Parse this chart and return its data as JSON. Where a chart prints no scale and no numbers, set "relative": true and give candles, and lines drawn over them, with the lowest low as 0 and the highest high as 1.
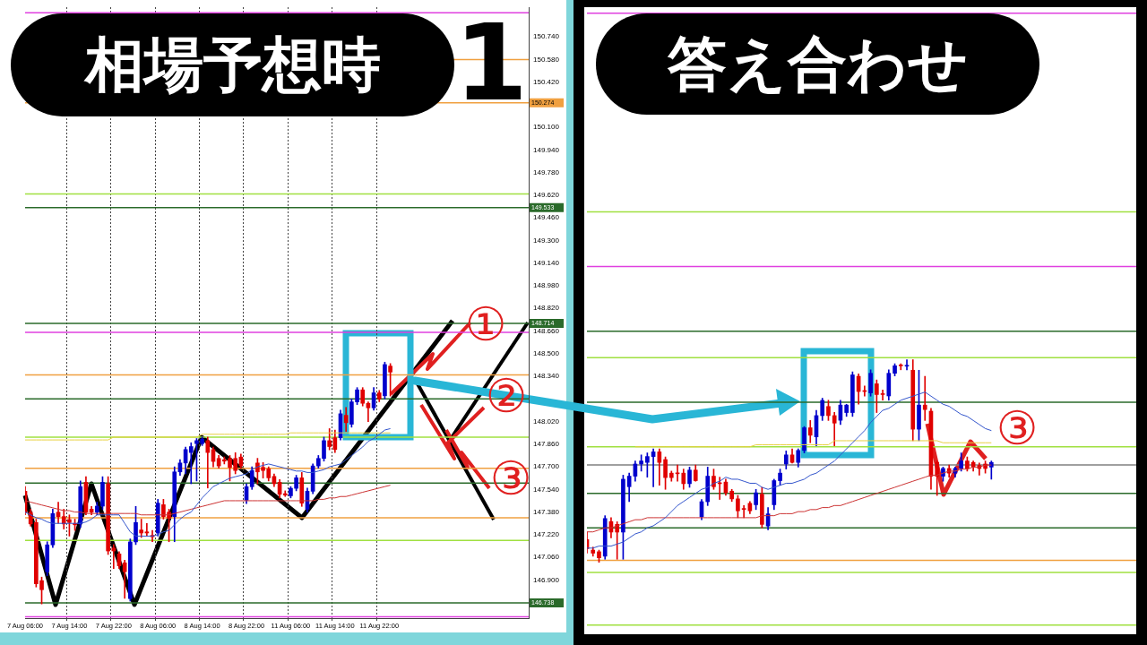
{
  "chart_data": [
    {
      "type": "candlestick",
      "title": "相場予想時",
      "categories": [
        "7 Aug 06:00",
        null,
        null,
        null,
        null,
        null,
        null,
        null,
        "7 Aug 14:00",
        null,
        null,
        null,
        null,
        null,
        null,
        null,
        "7 Aug 22:00",
        null,
        null,
        null,
        null,
        null,
        null,
        null,
        "8 Aug 06:00",
        null,
        null,
        null,
        null,
        null,
        null,
        null,
        "8 Aug 14:00",
        null,
        null,
        null,
        null,
        null,
        null,
        null,
        "8 Aug 22:00",
        null,
        null,
        null,
        null,
        null,
        null,
        null,
        "11 Aug 06:00",
        null,
        null,
        null,
        null,
        null,
        null,
        null,
        "11 Aug 14:00",
        null,
        null,
        null,
        null,
        null,
        null,
        null,
        "11 Aug 22:00",
        null,
        null,
        null,
        null,
        null,
        null,
        null,
        null,
        null,
        null,
        null,
        null,
        null,
        null,
        null,
        null,
        null,
        null,
        null,
        null,
        null,
        null,
        null,
        null,
        null,
        null,
        null
      ],
      "ohlc": [
        [
          147.527,
          147.56,
          147.36,
          147.379
        ],
        [
          147.379,
          147.4,
          147.28,
          147.296
        ],
        [
          147.306,
          147.33,
          146.85,
          146.873
        ],
        [
          146.895,
          146.92,
          146.73,
          146.831
        ],
        [
          146.958,
          147.17,
          146.93,
          147.148
        ],
        [
          147.148,
          147.4,
          147.13,
          147.369
        ],
        [
          147.379,
          147.45,
          147.3,
          147.348
        ],
        [
          147.348,
          147.4,
          147.26,
          147.296
        ],
        [
          147.327,
          147.36,
          147.21,
          147.306
        ],
        [
          147.3,
          147.33,
          147.25,
          147.29
        ],
        [
          147.296,
          147.6,
          147.27,
          147.559
        ],
        [
          147.59,
          147.63,
          147.36,
          147.379
        ],
        [
          147.4,
          147.42,
          147.36,
          147.379
        ],
        [
          147.379,
          147.45,
          147.36,
          147.422
        ],
        [
          147.422,
          147.63,
          147.4,
          147.59
        ],
        [
          147.58,
          147.63,
          147.08,
          147.105
        ],
        [
          147.126,
          147.15,
          146.98,
          147.105
        ],
        [
          147.084,
          147.1,
          146.98,
          147.0
        ],
        [
          147.021,
          147.04,
          146.77,
          146.958
        ],
        [
          146.768,
          147.19,
          146.75,
          147.169
        ],
        [
          147.169,
          147.42,
          147.15,
          147.306
        ],
        [
          147.253,
          147.33,
          147.2,
          147.232
        ],
        [
          147.24,
          147.3,
          147.21,
          147.232
        ],
        [
          147.215,
          147.25,
          147.17,
          147.205
        ],
        [
          147.232,
          147.47,
          147.21,
          147.443
        ],
        [
          147.432,
          147.47,
          147.33,
          147.348
        ],
        [
          147.379,
          147.4,
          147.17,
          147.338
        ],
        [
          147.348,
          147.7,
          147.17,
          147.664
        ],
        [
          147.664,
          147.75,
          147.64,
          147.727
        ],
        [
          147.727,
          147.84,
          147.65,
          147.822
        ],
        [
          147.801,
          147.87,
          147.58,
          147.843
        ],
        [
          147.864,
          147.9,
          147.6,
          147.885
        ],
        [
          147.864,
          147.91,
          147.85,
          147.896
        ],
        [
          147.885,
          147.91,
          147.55,
          147.801
        ],
        [
          147.822,
          147.84,
          147.7,
          147.738
        ],
        [
          147.759,
          147.78,
          147.69,
          147.706
        ],
        [
          147.75,
          147.77,
          147.72,
          147.74
        ],
        [
          147.759,
          147.78,
          147.6,
          147.696
        ],
        [
          147.759,
          147.8,
          147.65,
          147.674
        ],
        [
          147.769,
          147.79,
          147.69,
          147.706
        ],
        [
          147.464,
          147.58,
          147.44,
          147.559
        ],
        [
          147.559,
          147.7,
          147.54,
          147.674
        ],
        [
          147.727,
          147.76,
          147.58,
          147.664
        ],
        [
          147.696,
          147.73,
          147.62,
          147.674
        ],
        [
          147.685,
          147.7,
          147.6,
          147.622
        ],
        [
          147.632,
          147.65,
          147.56,
          147.58
        ],
        [
          147.59,
          147.61,
          147.48,
          147.506
        ],
        [
          147.51,
          147.53,
          147.49,
          147.5
        ],
        [
          147.495,
          147.56,
          147.48,
          147.548
        ],
        [
          147.548,
          147.64,
          147.53,
          147.622
        ],
        [
          147.622,
          147.66,
          147.42,
          147.443
        ],
        [
          147.4,
          147.55,
          147.38,
          147.527
        ],
        [
          147.527,
          147.72,
          147.51,
          147.706
        ],
        [
          147.706,
          147.78,
          147.69,
          147.759
        ],
        [
          147.759,
          147.91,
          147.74,
          147.885
        ],
        [
          147.885,
          147.97,
          147.82,
          147.843
        ],
        [
          147.906,
          147.96,
          147.8,
          147.822
        ],
        [
          147.906,
          148.1,
          147.89,
          148.075
        ],
        [
          148.064,
          148.12,
          147.95,
          148.012
        ],
        [
          148.001,
          148.18,
          147.98,
          148.159
        ],
        [
          148.159,
          148.26,
          148.14,
          148.244
        ],
        [
          148.244,
          148.26,
          148.13,
          148.149
        ],
        [
          148.149,
          148.16,
          148.02,
          148.117
        ],
        [
          148.117,
          148.26,
          148.1,
          148.223
        ],
        [
          148.223,
          148.24,
          148.16,
          148.18
        ],
        [
          148.202,
          148.44,
          148.18,
          148.423
        ],
        [
          148.412,
          148.43,
          148.2,
          148.37
        ],
        null,
        null,
        null,
        null,
        null,
        null,
        null,
        null,
        null,
        null,
        null,
        null,
        null,
        null,
        null,
        null,
        null,
        null,
        null,
        null,
        null,
        null,
        null,
        null,
        null
      ],
      "colors": [
        "#e00000",
        "#e00000",
        "#e00000",
        "#e00000",
        "#0000cc",
        "#0000cc",
        "#e00000",
        "#e00000",
        "#e00000",
        "#e00000",
        "#0000cc",
        "#e00000",
        "#e00000",
        "#0000cc",
        "#0000cc",
        "#e00000",
        "#e00000",
        "#e00000",
        "#e00000",
        "#0000cc",
        "#0000cc",
        "#e00000",
        "#e00000",
        "#e00000",
        "#0000cc",
        "#e00000",
        "#e00000",
        "#0000cc",
        "#0000cc",
        "#0000cc",
        "#0000cc",
        "#0000cc",
        "#0000cc",
        "#e00000",
        "#e00000",
        "#e00000",
        "#e00000",
        "#e00000",
        "#e00000",
        "#e00000",
        "#0000cc",
        "#0000cc",
        "#e00000",
        "#e00000",
        "#e00000",
        "#e00000",
        "#e00000",
        "#e00000",
        "#0000cc",
        "#0000cc",
        "#e00000",
        "#0000cc",
        "#0000cc",
        "#0000cc",
        "#0000cc",
        "#e00000",
        "#e00000",
        "#0000cc",
        "#e00000",
        "#0000cc",
        "#0000cc",
        "#e00000",
        "#e00000",
        "#0000cc",
        "#e00000",
        "#0000cc",
        "#e00000",
        null,
        null,
        null,
        null,
        null,
        null,
        null,
        null,
        null,
        null,
        null,
        null,
        null,
        null,
        null,
        null,
        null,
        null,
        null,
        null,
        null,
        null,
        null,
        null,
        null
      ],
      "series": [
        {
          "type": "line",
          "color": "#3355cc",
          "values": [
            147.38,
            147.36,
            147.34,
            147.33,
            147.31,
            147.3,
            147.3,
            147.3,
            147.3,
            147.3,
            147.3,
            147.31,
            147.33,
            147.36,
            147.36,
            147.36,
            147.36,
            147.36,
            147.3,
            147.24,
            147.21,
            147.21,
            147.21,
            147.21,
            147.22,
            147.24,
            147.25,
            147.29,
            147.33,
            147.36,
            147.38,
            147.43,
            147.48,
            147.52,
            147.56,
            147.58,
            147.6,
            147.62,
            147.63,
            147.64,
            147.65,
            147.68,
            147.7,
            147.71,
            147.72,
            147.71,
            147.7,
            147.69,
            147.68,
            147.67,
            147.67,
            147.66,
            147.66,
            147.67,
            147.68,
            147.7,
            147.71,
            147.72,
            147.75,
            147.78,
            147.81,
            147.84,
            147.88,
            147.9,
            147.93,
            147.96,
            147.97,
            null,
            null,
            null,
            null,
            null,
            null,
            null,
            null,
            null,
            null,
            null,
            null,
            null,
            null,
            null,
            null,
            null,
            null,
            null,
            null,
            null,
            null,
            null,
            null,
            null
          ]
        },
        {
          "type": "line",
          "color": "#cc3333",
          "values": [
            147.46,
            147.45,
            147.44,
            147.43,
            147.42,
            147.41,
            147.4,
            147.39,
            147.39,
            147.38,
            147.38,
            147.37,
            147.37,
            147.37,
            147.37,
            147.37,
            147.37,
            147.37,
            147.37,
            147.37,
            147.37,
            147.36,
            147.36,
            147.36,
            147.36,
            147.36,
            147.36,
            147.37,
            147.38,
            147.39,
            147.4,
            147.41,
            147.42,
            147.43,
            147.44,
            147.45,
            147.46,
            147.46,
            147.46,
            147.46,
            147.46,
            147.46,
            147.46,
            147.46,
            147.46,
            147.46,
            147.46,
            147.46,
            147.46,
            147.46,
            147.46,
            147.46,
            147.46,
            147.47,
            147.47,
            147.48,
            147.48,
            147.49,
            147.49,
            147.5,
            147.51,
            147.52,
            147.53,
            147.54,
            147.55,
            147.56,
            147.57,
            null,
            null,
            null,
            null,
            null,
            null,
            null,
            null,
            null,
            null,
            null,
            null,
            null,
            null,
            null,
            null,
            null,
            null,
            null,
            null,
            null,
            null,
            null,
            null,
            null
          ]
        },
        {
          "type": "line",
          "color": "#e8d040",
          "values": [
            147.89,
            147.89,
            147.89,
            147.89,
            147.89,
            147.89,
            147.89,
            147.89,
            147.89,
            147.89,
            147.89,
            147.89,
            147.89,
            147.89,
            147.89,
            147.89,
            147.91,
            147.91,
            147.91,
            147.91,
            147.91,
            147.91,
            147.91,
            147.91,
            147.91,
            147.91,
            147.91,
            147.91,
            147.91,
            147.91,
            147.91,
            147.91,
            147.93,
            147.93,
            147.93,
            147.93,
            147.93,
            147.93,
            147.93,
            147.93,
            147.93,
            147.93,
            147.93,
            147.93,
            147.93,
            147.93,
            147.93,
            147.93,
            147.94,
            147.94,
            147.94,
            147.94,
            147.94,
            147.94,
            147.94,
            147.94,
            147.94,
            147.94,
            147.94,
            147.94,
            147.94,
            147.94,
            147.94,
            147.94,
            147.94,
            147.94,
            147.94,
            null,
            null,
            null,
            null,
            null,
            null,
            null,
            null,
            null,
            null,
            null,
            null,
            null,
            null,
            null,
            null,
            null,
            null,
            null,
            null,
            null,
            null,
            null,
            null,
            null
          ]
        }
      ],
      "ylim": [
        146.63,
        150.95
      ],
      "yticks": [
        {
          "value": 150.74,
          "label": "150.740"
        },
        {
          "value": 150.58,
          "label": "150.580"
        },
        {
          "value": 150.42,
          "label": "150.420"
        },
        {
          "value": 150.1,
          "label": "150.100"
        },
        {
          "value": 149.94,
          "label": "149.940"
        },
        {
          "value": 149.78,
          "label": "149.780"
        },
        {
          "value": 149.62,
          "label": "149.620"
        },
        {
          "value": 149.46,
          "label": "149.460"
        },
        {
          "value": 149.3,
          "label": "149.300"
        },
        {
          "value": 149.14,
          "label": "149.140"
        },
        {
          "value": 148.98,
          "label": "148.980"
        },
        {
          "value": 148.82,
          "label": "148.820"
        },
        {
          "value": 148.66,
          "label": "148.660"
        },
        {
          "value": 148.5,
          "label": "148.500"
        },
        {
          "value": 148.34,
          "label": "148.340"
        },
        {
          "value": 148.02,
          "label": "148.020"
        },
        {
          "value": 147.86,
          "label": "147.860"
        },
        {
          "value": 147.7,
          "label": "147.700"
        },
        {
          "value": 147.54,
          "label": "147.540"
        },
        {
          "value": 147.38,
          "label": "147.380"
        },
        {
          "value": 147.22,
          "label": "147.220"
        },
        {
          "value": 147.06,
          "label": "147.060"
        },
        {
          "value": 146.9,
          "label": "146.900"
        }
      ],
      "ref_lines": [
        {
          "axis": "y",
          "value": 150.91,
          "color": "#e040e0"
        },
        {
          "axis": "y",
          "value": 150.58,
          "color": "#f0a040"
        },
        {
          "axis": "y",
          "value": 150.274,
          "color": "#f0a040",
          "label": "150.274"
        },
        {
          "axis": "y",
          "value": 149.63,
          "color": "#a0e040"
        },
        {
          "axis": "y",
          "value": 149.533,
          "color": "#2a6a2a",
          "label": "149.533"
        },
        {
          "axis": "y",
          "value": 148.714,
          "color": "#2a6a2a",
          "label": "148.714"
        },
        {
          "axis": "y",
          "value": 148.65,
          "color": "#e040e0"
        },
        {
          "axis": "y",
          "value": 148.35,
          "color": "#f0a040"
        },
        {
          "axis": "y",
          "value": 148.18,
          "color": "#2a6a2a"
        },
        {
          "axis": "y",
          "value": 147.91,
          "color": "#a0e040"
        },
        {
          "axis": "y",
          "value": 147.69,
          "color": "#f0a040"
        },
        {
          "axis": "y",
          "value": 147.585,
          "color": "#2a6a2a"
        },
        {
          "axis": "y",
          "value": 147.34,
          "color": "#f0a040"
        },
        {
          "axis": "y",
          "value": 147.18,
          "color": "#a0e040"
        },
        {
          "axis": "y",
          "value": 146.738,
          "color": "#2a6a2a",
          "label": "146.738"
        },
        {
          "axis": "y",
          "value": 146.64,
          "color": "#e040e0"
        }
      ],
      "grid": "x",
      "annotations": [
        "1",
        {
          "text": "①",
          "y": 148.71
        },
        {
          "text": "②",
          "y": 148.2
        },
        {
          "text": "③",
          "y": 147.62
        }
      ]
    },
    {
      "type": "candlestick",
      "title": "答え合わせ",
      "relative": true,
      "tick_labels": false,
      "categories": [
        null,
        null,
        null,
        null,
        null,
        null,
        null,
        null,
        null,
        null,
        null,
        null,
        null,
        null,
        null,
        null,
        null,
        null,
        null,
        null,
        null,
        null,
        null,
        null,
        null,
        null,
        null,
        null,
        null,
        null,
        null,
        null,
        null,
        null,
        null,
        null,
        null,
        null,
        null,
        null,
        null,
        null,
        null,
        null,
        null,
        null,
        null,
        null,
        null,
        null,
        null,
        null,
        null,
        null,
        null,
        null,
        null,
        null,
        null,
        null,
        null,
        null,
        null,
        null,
        null,
        null,
        null,
        null,
        null,
        null,
        null,
        null,
        null,
        null,
        null,
        null,
        null,
        null,
        null,
        null,
        null,
        null,
        null,
        null,
        null,
        null,
        null,
        null,
        null,
        null,
        null,
        null
      ],
      "ohlc": [
        [
          0.112,
          0.149,
          0.045,
          0.067
        ],
        [
          0.06,
          0.075,
          0.03,
          0.045
        ],
        [
          0.052,
          0.06,
          0,
          0.022
        ],
        [
          0.03,
          0.23,
          0.015,
          0.216
        ],
        [
          0.201,
          0.22,
          0.12,
          0.149
        ],
        [
          0.187,
          0.2,
          0.015,
          0.149
        ],
        [
          0.149,
          0.43,
          0.015,
          0.41
        ],
        [
          0.373,
          0.44,
          0.3,
          0.425
        ],
        [
          0.425,
          0.5,
          0.4,
          0.485
        ],
        [
          0.485,
          0.53,
          0.45,
          0.5
        ],
        [
          0.493,
          0.54,
          0.42,
          0.522
        ],
        [
          0.522,
          0.56,
          0.373,
          0.545
        ],
        [
          0.545,
          0.56,
          0.38,
          0.493
        ],
        [
          0.507,
          0.52,
          0.36,
          0.418
        ],
        [
          0.44,
          0.45,
          0.4,
          0.418
        ],
        [
          0.44,
          0.48,
          0.4,
          0.437
        ],
        [
          0.44,
          0.46,
          0.36,
          0.388
        ],
        [
          0.388,
          0.47,
          0.37,
          0.455
        ],
        [
          0.455,
          0.48,
          0.4,
          0.403
        ],
        [
          0.224,
          0.31,
          0.21,
          0.299
        ],
        [
          0.299,
          0.47,
          0.28,
          0.425
        ],
        [
          0.425,
          0.46,
          0.36,
          0.373
        ],
        [
          0.39,
          0.42,
          0.31,
          0.388
        ],
        [
          0.396,
          0.41,
          0.33,
          0.343
        ],
        [
          0.351,
          0.36,
          0.3,
          0.313
        ],
        [
          0.313,
          0.33,
          0.22,
          0.254
        ],
        [
          0.263,
          0.28,
          0.22,
          0.261
        ],
        [
          0.291,
          0.3,
          0.24,
          0.254
        ],
        [
          0.284,
          0.36,
          0.26,
          0.343
        ],
        [
          0.336,
          0.37,
          0.17,
          0.187
        ],
        [
          0.179,
          0.27,
          0.16,
          0.239
        ],
        [
          0.284,
          0.41,
          0.26,
          0.403
        ],
        [
          0.403,
          0.46,
          0.38,
          0.44
        ],
        [
          0.485,
          0.55,
          0.46,
          0.53
        ],
        [
          0.53,
          0.56,
          0.49,
          0.493
        ],
        [
          0.493,
          0.56,
          0.47,
          0.552
        ],
        [
          0.552,
          0.67,
          0.54,
          0.664
        ],
        [
          0.664,
          0.7,
          0.59,
          0.627
        ],
        [
          0.619,
          0.75,
          0.575,
          0.724
        ],
        [
          0.724,
          0.81,
          0.7,
          0.799
        ],
        [
          0.769,
          0.8,
          0.7,
          0.724
        ],
        [
          0.724,
          0.74,
          0.575,
          0.687
        ],
        [
          0.701,
          0.8,
          0.68,
          0.776
        ],
        [
          0.739,
          0.78,
          0.72,
          0.776
        ],
        [
          0.739,
          0.94,
          0.72,
          0.925
        ],
        [
          0.918,
          0.93,
          0.78,
          0.843
        ],
        [
          0.845,
          0.87,
          0.82,
          0.843
        ],
        [
          0.836,
          0.95,
          0.82,
          0.933
        ],
        [
          0.881,
          0.9,
          0.739,
          0.828
        ],
        [
          0.83,
          0.85,
          0.8,
          0.828
        ],
        [
          0.821,
          0.95,
          0.8,
          0.933
        ],
        [
          0.933,
          0.98,
          0.92,
          0.97
        ],
        [
          0.972,
          0.98,
          0.95,
          0.97
        ],
        [
          0.968,
          1.0,
          0.95,
          0.97
        ],
        [
          0.948,
          1.0,
          0.6,
          0.657
        ],
        [
          0.657,
          0.948,
          0.6,
          0.776
        ],
        [
          0.776,
          0.918,
          0.7,
          0.754
        ],
        [
          0.746,
          0.76,
          0.36,
          0.425
        ],
        [
          0.493,
          0.5,
          0.33,
          0.425
        ],
        [
          0.425,
          0.47,
          0.4,
          0.463
        ],
        [
          0.463,
          0.48,
          0.42,
          0.44
        ],
        [
          0.44,
          0.47,
          0.42,
          0.463
        ],
        [
          0.463,
          0.54,
          0.45,
          0.5
        ],
        [
          0.5,
          0.52,
          0.45,
          0.463
        ],
        [
          0.493,
          0.5,
          0.45,
          0.47
        ],
        [
          0.478,
          0.49,
          0.43,
          0.463
        ],
        [
          0.485,
          0.5,
          0.44,
          0.463
        ],
        [
          0.47,
          0.5,
          0.41,
          0.493
        ],
        null,
        null,
        null,
        null,
        null,
        null,
        null,
        null,
        null,
        null,
        null,
        null,
        null,
        null,
        null,
        null,
        null,
        null,
        null,
        null,
        null,
        null,
        null,
        null
      ],
      "colors": [
        "#e00000",
        "#e00000",
        "#e00000",
        "#0000cc",
        "#e00000",
        "#e00000",
        "#0000cc",
        "#0000cc",
        "#0000cc",
        "#0000cc",
        "#0000cc",
        "#0000cc",
        "#e00000",
        "#e00000",
        "#e00000",
        "#e00000",
        "#e00000",
        "#0000cc",
        "#e00000",
        "#0000cc",
        "#0000cc",
        "#e00000",
        "#e00000",
        "#e00000",
        "#e00000",
        "#e00000",
        "#e00000",
        "#e00000",
        "#0000cc",
        "#e00000",
        "#0000cc",
        "#0000cc",
        "#0000cc",
        "#0000cc",
        "#e00000",
        "#0000cc",
        "#0000cc",
        "#e00000",
        "#0000cc",
        "#0000cc",
        "#e00000",
        "#e00000",
        "#0000cc",
        "#0000cc",
        "#0000cc",
        "#e00000",
        "#e00000",
        "#0000cc",
        "#e00000",
        "#e00000",
        "#0000cc",
        "#0000cc",
        "#e00000",
        "#0000cc",
        "#e00000",
        "#0000cc",
        "#e00000",
        "#e00000",
        "#e00000",
        "#0000cc",
        "#e00000",
        "#0000cc",
        "#0000cc",
        "#e00000",
        "#e00000",
        "#e00000",
        "#e00000",
        "#0000cc",
        null,
        null,
        null,
        null,
        null,
        null,
        null,
        null,
        null,
        null,
        null,
        null,
        null,
        null,
        null,
        null,
        null,
        null,
        null,
        null,
        null,
        null,
        null,
        null
      ],
      "series": [
        {
          "type": "line",
          "color": "#3355cc",
          "values": [
            0.07,
            0.07,
            0.08,
            0.08,
            0.08,
            0.09,
            0.1,
            0.12,
            0.14,
            0.15,
            0.17,
            0.18,
            0.2,
            0.22,
            0.25,
            0.28,
            0.3,
            0.32,
            0.34,
            0.36,
            0.37,
            0.39,
            0.4,
            0.42,
            0.41,
            0.41,
            0.4,
            0.39,
            0.39,
            0.37,
            0.36,
            0.37,
            0.38,
            0.39,
            0.39,
            0.4,
            0.41,
            0.43,
            0.44,
            0.46,
            0.48,
            0.5,
            0.53,
            0.56,
            0.59,
            0.62,
            0.65,
            0.69,
            0.72,
            0.75,
            0.76,
            0.78,
            0.8,
            0.81,
            0.82,
            0.83,
            0.84,
            0.82,
            0.8,
            0.78,
            0.77,
            0.75,
            0.73,
            0.72,
            0.7,
            0.68,
            0.66,
            0.65,
            null,
            null,
            null,
            null,
            null,
            null,
            null,
            null,
            null,
            null,
            null,
            null,
            null,
            null,
            null,
            null,
            null,
            null,
            null,
            null,
            null,
            null,
            null,
            null
          ]
        },
        {
          "type": "line",
          "color": "#cc3333",
          "values": [
            0.15,
            0.15,
            0.16,
            0.17,
            0.17,
            0.18,
            0.19,
            0.2,
            0.21,
            0.21,
            0.22,
            0.22,
            0.22,
            0.22,
            0.22,
            0.22,
            0.22,
            0.22,
            0.22,
            0.22,
            0.22,
            0.22,
            0.22,
            0.22,
            0.22,
            0.22,
            0.22,
            0.22,
            0.22,
            0.23,
            0.23,
            0.23,
            0.24,
            0.24,
            0.24,
            0.25,
            0.25,
            0.26,
            0.26,
            0.27,
            0.27,
            0.28,
            0.28,
            0.29,
            0.3,
            0.31,
            0.32,
            0.33,
            0.34,
            0.35,
            0.36,
            0.37,
            0.38,
            0.39,
            0.4,
            0.41,
            0.42,
            0.43,
            0.43,
            0.44,
            0.45,
            0.45,
            0.46,
            0.46,
            0.47,
            0.47,
            0.48,
            0.48,
            null,
            null,
            null,
            null,
            null,
            null,
            null,
            null,
            null,
            null,
            null,
            null,
            null,
            null,
            null,
            null,
            null,
            null,
            null,
            null,
            null,
            null,
            null,
            null
          ]
        },
        {
          "type": "line",
          "color": "#e8d040",
          "values": [
            null,
            null,
            null,
            null,
            null,
            null,
            null,
            null,
            0.57,
            0.57,
            0.57,
            0.57,
            0.57,
            0.57,
            0.57,
            0.57,
            0.57,
            0.57,
            0.57,
            0.57,
            0.57,
            0.57,
            0.57,
            0.57,
            0.57,
            0.57,
            0.57,
            0.57,
            0.58,
            0.58,
            0.58,
            0.58,
            0.58,
            0.58,
            0.58,
            0.58,
            0.58,
            0.58,
            0.58,
            0.58,
            0.58,
            0.6,
            0.6,
            0.6,
            0.6,
            0.6,
            0.6,
            0.6,
            0.6,
            0.6,
            0.6,
            0.6,
            0.6,
            0.6,
            0.6,
            0.6,
            0.6,
            0.6,
            0.6,
            0.59,
            0.59,
            0.59,
            0.59,
            0.59,
            0.59,
            0.59,
            0.59,
            0.59,
            null,
            null,
            null,
            null,
            null,
            null,
            null,
            null,
            null,
            null,
            null,
            null,
            null,
            null,
            null,
            null,
            null,
            null,
            null,
            null,
            null,
            null,
            null,
            null
          ]
        }
      ],
      "ref_lines": [
        {
          "axis": "y",
          "value": 2.71,
          "color": "#e040e0"
        },
        {
          "axis": "y",
          "value": 1.73,
          "color": "#a0e040"
        },
        {
          "axis": "y",
          "value": 1.46,
          "color": "#e040e0"
        },
        {
          "axis": "y",
          "value": 1.14,
          "color": "#2a6a2a"
        },
        {
          "axis": "y",
          "value": 1.01,
          "color": "#a0e040"
        },
        {
          "axis": "y",
          "value": 0.79,
          "color": "#2a6a2a"
        },
        {
          "axis": "y",
          "value": 0.57,
          "color": "#a0e040"
        },
        {
          "axis": "y",
          "value": 0.48,
          "color": "#808080"
        },
        {
          "axis": "y",
          "value": 0.34,
          "color": "#2a6a2a"
        },
        {
          "axis": "y",
          "value": 0.17,
          "color": "#2a6a2a"
        },
        {
          "axis": "y",
          "value": 0.01,
          "color": "#f0a040"
        },
        {
          "axis": "y",
          "value": -0.05,
          "color": "#a0e040"
        },
        {
          "axis": "y",
          "value": -0.31,
          "color": "#a0e040"
        }
      ],
      "annotations": [
        "③"
      ]
    }
  ]
}
